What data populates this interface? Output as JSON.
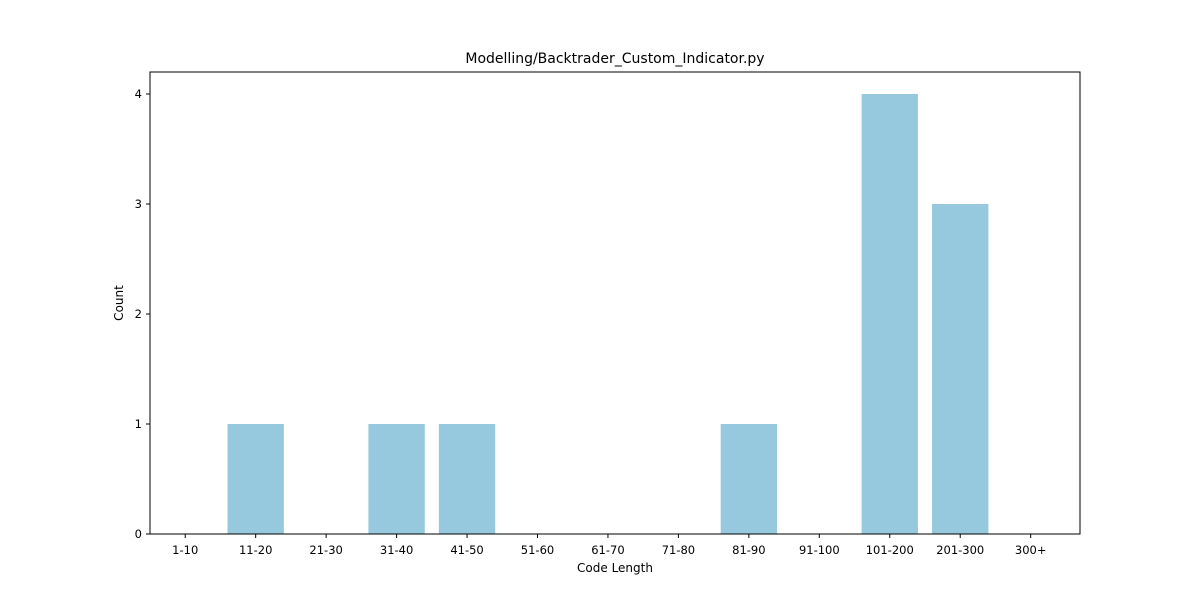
{
  "chart_data": {
    "type": "bar",
    "title": "Modelling/Backtrader_Custom_Indicator.py",
    "xlabel": "Code Length",
    "ylabel": "Count",
    "categories": [
      "1-10",
      "11-20",
      "21-30",
      "31-40",
      "41-50",
      "51-60",
      "61-70",
      "71-80",
      "81-90",
      "91-100",
      "101-200",
      "201-300",
      "300+"
    ],
    "values": [
      0,
      1,
      0,
      1,
      1,
      0,
      0,
      0,
      1,
      0,
      4,
      3,
      0
    ],
    "ylim": [
      0,
      4.2
    ],
    "yticks": [
      0,
      1,
      2,
      3,
      4
    ],
    "grid": false,
    "bar_color": "#96c9dd"
  }
}
